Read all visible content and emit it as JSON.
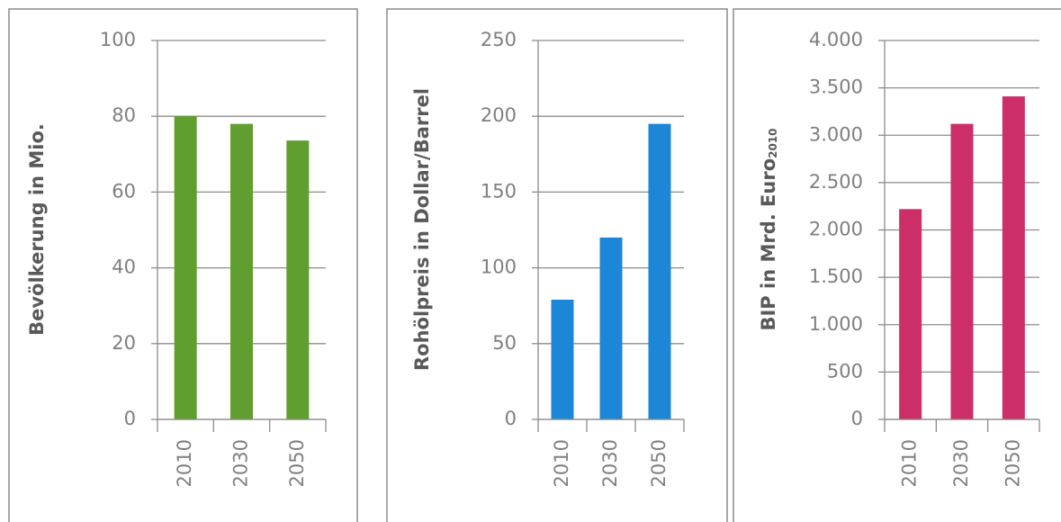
{
  "chart_data": [
    {
      "type": "bar",
      "y_label": "Bevölkerung in Mio.",
      "categories": [
        "2010",
        "2030",
        "2050"
      ],
      "values": [
        80,
        78,
        73.6
      ],
      "color": "#5f9e2f",
      "ylim": [
        0,
        100
      ],
      "yticks": [
        0,
        20,
        40,
        60,
        80,
        100
      ],
      "grid": true
    },
    {
      "type": "bar",
      "y_label": "Rohölpreis in Dollar/Barrel",
      "categories": [
        "2010",
        "2030",
        "2050"
      ],
      "values": [
        79,
        120,
        195
      ],
      "color": "#1b87d6",
      "ylim": [
        0,
        250
      ],
      "yticks": [
        0,
        50,
        100,
        150,
        200,
        250
      ],
      "grid": true
    },
    {
      "type": "bar",
      "y_label": "BIP in Mrd. Euro",
      "y_label_subscript": "2010",
      "categories": [
        "2010",
        "2030",
        "2050"
      ],
      "values": [
        2220,
        3120,
        3410
      ],
      "color": "#cc2e67",
      "ylim": [
        0,
        4000
      ],
      "yticks": [
        0,
        500,
        {
          "value": 1000,
          "label": "1.000"
        },
        {
          "value": 1500,
          "label": "1.500"
        },
        {
          "value": 2000,
          "label": "2.000"
        },
        {
          "value": 2500,
          "label": "2.500"
        },
        {
          "value": 3000,
          "label": "3.000"
        },
        {
          "value": 3500,
          "label": "3.500"
        },
        {
          "value": 4000,
          "label": "4.000"
        }
      ],
      "grid": true
    }
  ]
}
